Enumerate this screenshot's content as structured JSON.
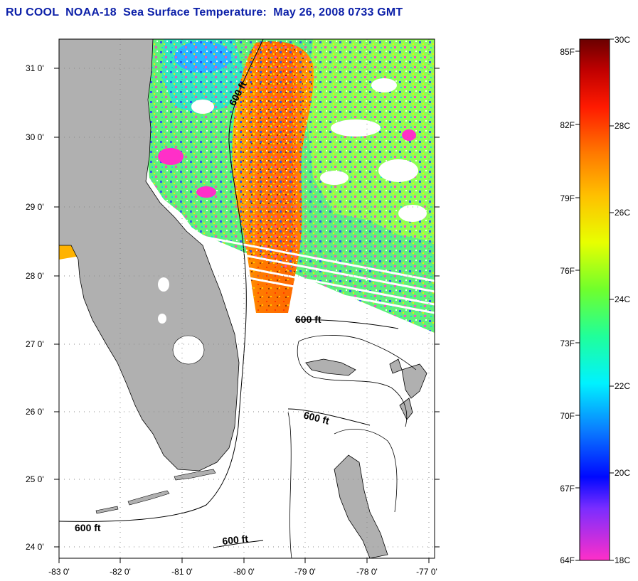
{
  "header": {
    "title": "RU COOL  NOAA-18  Sea Surface Temperature:  May 26, 2008 0733 GMT"
  },
  "map": {
    "lat_labels": [
      "31 0'",
      "30 0'",
      "29 0'",
      "28 0'",
      "27 0'",
      "26 0'",
      "25 0'",
      "24 0'"
    ],
    "lon_labels": [
      "-83 0'",
      "-82 0'",
      "-81 0'",
      "-80 0'",
      "-79 0'",
      "-78 0'",
      "-77 0'"
    ],
    "contour_labels": [
      "600 ft",
      "600 ft",
      "600 ft",
      "600 ft",
      "600 ft"
    ],
    "colors": {
      "land": "#b0b0b0",
      "no_data": "#ffffff",
      "frame": "#000000"
    }
  },
  "colorbar": {
    "fahrenheit_labels": [
      "85F",
      "82F",
      "79F",
      "76F",
      "73F",
      "70F",
      "67F",
      "64F"
    ],
    "celsius_labels": [
      "30C",
      "28C",
      "26C",
      "24C",
      "22C",
      "20C",
      "18C"
    ]
  }
}
